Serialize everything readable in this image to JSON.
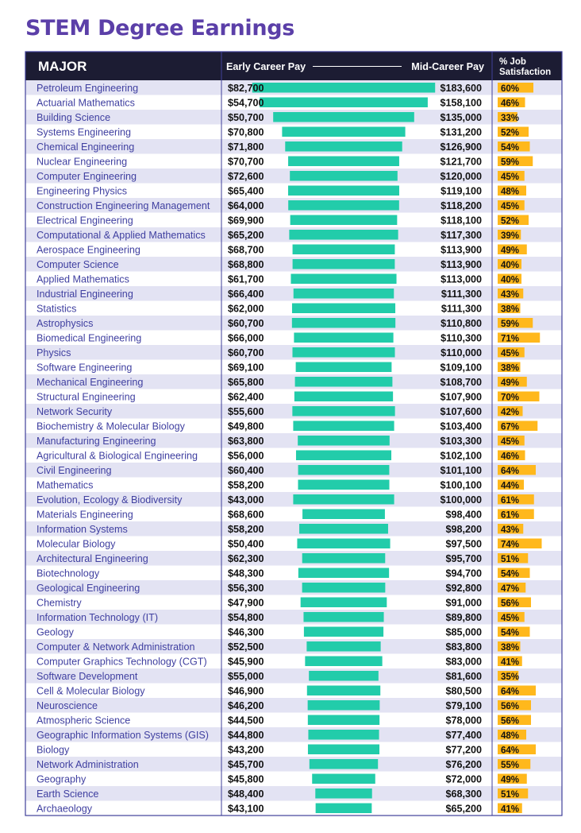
{
  "title": "STEM Degree Earnings",
  "headers": {
    "major": "MAJOR",
    "early": "Early Career Pay",
    "mid": "Mid-Career Pay",
    "sat_line1": "% Job",
    "sat_line2": "Satisfaction"
  },
  "colors": {
    "title": "#5b3fa8",
    "header_bg": "#1c1c33",
    "row_shade": "#e3e3f3",
    "major_text": "#3f3fa0",
    "bar": "#22ccaa",
    "satisfaction_bar": "#ffb81c",
    "frame": "#3f3f9a"
  },
  "chart_data": {
    "type": "table",
    "columns": [
      "MAJOR",
      "Early Career Pay",
      "Mid-Career Pay",
      "% Job Satisfaction"
    ],
    "rows": [
      {
        "major": "Petroleum Engineering",
        "early": 82700,
        "mid": 183600,
        "satisfaction": 60
      },
      {
        "major": "Actuarial Mathematics",
        "early": 54700,
        "mid": 158100,
        "satisfaction": 46
      },
      {
        "major": "Building Science",
        "early": 50700,
        "mid": 135000,
        "satisfaction": 33
      },
      {
        "major": "Systems Engineering",
        "early": 70800,
        "mid": 131200,
        "satisfaction": 52
      },
      {
        "major": "Chemical Engineering",
        "early": 71800,
        "mid": 126900,
        "satisfaction": 54
      },
      {
        "major": "Nuclear Engineering",
        "early": 70700,
        "mid": 121700,
        "satisfaction": 59
      },
      {
        "major": "Computer Engineering",
        "early": 72600,
        "mid": 120000,
        "satisfaction": 45
      },
      {
        "major": "Engineering Physics",
        "early": 65400,
        "mid": 119100,
        "satisfaction": 48
      },
      {
        "major": "Construction Engineering Management",
        "early": 64000,
        "mid": 118200,
        "satisfaction": 45
      },
      {
        "major": "Electrical Engineering",
        "early": 69900,
        "mid": 118100,
        "satisfaction": 52
      },
      {
        "major": "Computational & Applied Mathematics",
        "early": 65200,
        "mid": 117300,
        "satisfaction": 39
      },
      {
        "major": "Aerospace Engineering",
        "early": 68700,
        "mid": 113900,
        "satisfaction": 49
      },
      {
        "major": "Computer Science",
        "early": 68800,
        "mid": 113900,
        "satisfaction": 40
      },
      {
        "major": "Applied Mathematics",
        "early": 61700,
        "mid": 113000,
        "satisfaction": 40
      },
      {
        "major": "Industrial Engineering",
        "early": 66400,
        "mid": 111300,
        "satisfaction": 43
      },
      {
        "major": "Statistics",
        "early": 62000,
        "mid": 111300,
        "satisfaction": 38
      },
      {
        "major": "Astrophysics",
        "early": 60700,
        "mid": 110800,
        "satisfaction": 59
      },
      {
        "major": "Biomedical Engineering",
        "early": 66000,
        "mid": 110300,
        "satisfaction": 71
      },
      {
        "major": "Physics",
        "early": 60700,
        "mid": 110000,
        "satisfaction": 45
      },
      {
        "major": "Software Engineering",
        "early": 69100,
        "mid": 109100,
        "satisfaction": 38
      },
      {
        "major": "Mechanical Engineering",
        "early": 65800,
        "mid": 108700,
        "satisfaction": 49
      },
      {
        "major": "Structural Engineering",
        "early": 62400,
        "mid": 107900,
        "satisfaction": 70
      },
      {
        "major": "Network Security",
        "early": 55600,
        "mid": 107600,
        "satisfaction": 42
      },
      {
        "major": "Biochemistry & Molecular Biology",
        "early": 49800,
        "mid": 103400,
        "satisfaction": 67
      },
      {
        "major": "Manufacturing Engineering",
        "early": 63800,
        "mid": 103300,
        "satisfaction": 45
      },
      {
        "major": "Agricultural & Biological Engineering",
        "early": 56000,
        "mid": 102100,
        "satisfaction": 46
      },
      {
        "major": "Civil Engineering",
        "early": 60400,
        "mid": 101100,
        "satisfaction": 64
      },
      {
        "major": "Mathematics",
        "early": 58200,
        "mid": 100100,
        "satisfaction": 44
      },
      {
        "major": "Evolution, Ecology & Biodiversity",
        "early": 43000,
        "mid": 100000,
        "satisfaction": 61
      },
      {
        "major": "Materials Engineering",
        "early": 68600,
        "mid": 98400,
        "satisfaction": 61
      },
      {
        "major": "Information Systems",
        "early": 58200,
        "mid": 98200,
        "satisfaction": 43
      },
      {
        "major": "Molecular Biology",
        "early": 50400,
        "mid": 97500,
        "satisfaction": 74
      },
      {
        "major": "Architectural Engineering",
        "early": 62300,
        "mid": 95700,
        "satisfaction": 51
      },
      {
        "major": "Biotechnology",
        "early": 48300,
        "mid": 94700,
        "satisfaction": 54
      },
      {
        "major": "Geological Engineering",
        "early": 56300,
        "mid": 92800,
        "satisfaction": 47
      },
      {
        "major": "Chemistry",
        "early": 47900,
        "mid": 91000,
        "satisfaction": 56
      },
      {
        "major": "Information Technology (IT)",
        "early": 54800,
        "mid": 89800,
        "satisfaction": 45
      },
      {
        "major": "Geology",
        "early": 46300,
        "mid": 85000,
        "satisfaction": 54
      },
      {
        "major": "Computer & Network Administration",
        "early": 52500,
        "mid": 83800,
        "satisfaction": 38
      },
      {
        "major": "Computer Graphics Technology (CGT)",
        "early": 45900,
        "mid": 83000,
        "satisfaction": 41
      },
      {
        "major": "Software Development",
        "early": 55000,
        "mid": 81600,
        "satisfaction": 35
      },
      {
        "major": "Cell & Molecular Biology",
        "early": 46900,
        "mid": 80500,
        "satisfaction": 64
      },
      {
        "major": "Neuroscience",
        "early": 46200,
        "mid": 79100,
        "satisfaction": 56
      },
      {
        "major": "Atmospheric Science",
        "early": 44500,
        "mid": 78000,
        "satisfaction": 56
      },
      {
        "major": "Geographic Information Systems (GIS)",
        "early": 44800,
        "mid": 77400,
        "satisfaction": 48
      },
      {
        "major": "Biology",
        "early": 43200,
        "mid": 77200,
        "satisfaction": 64
      },
      {
        "major": "Network Administration",
        "early": 45700,
        "mid": 76200,
        "satisfaction": 55
      },
      {
        "major": "Geography",
        "early": 45800,
        "mid": 72000,
        "satisfaction": 49
      },
      {
        "major": "Earth Science",
        "early": 48400,
        "mid": 68300,
        "satisfaction": 51
      },
      {
        "major": "Archaeology",
        "early": 43100,
        "mid": 65200,
        "satisfaction": 41
      }
    ]
  }
}
